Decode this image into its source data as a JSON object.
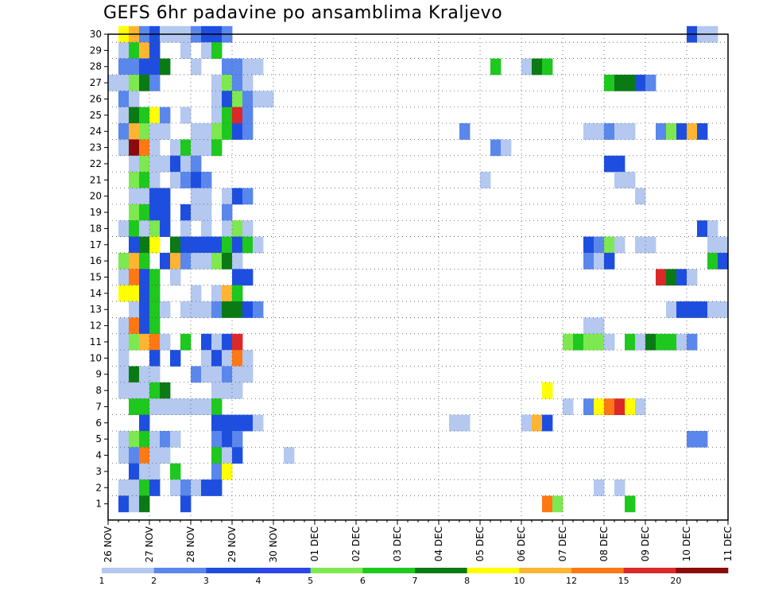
{
  "title": "GEFS 6hr padavine po ansamblima Kraljevo",
  "chart_data": {
    "type": "heatmap",
    "title": "GEFS 6hr padavine po ansamblima Kraljevo",
    "x_tick_labels": [
      "26 NOV",
      "27 NOV",
      "28 NOV",
      "29 NOV",
      "30 NOV",
      "01 DEC",
      "02 DEC",
      "03 DEC",
      "04 DEC",
      "05 DEC",
      "06 DEC",
      "07 DEC",
      "08 DEC",
      "09 DEC",
      "10 DEC",
      "11 DEC"
    ],
    "y_tick_labels": [
      "1",
      "2",
      "3",
      "4",
      "5",
      "6",
      "7",
      "8",
      "9",
      "10",
      "11",
      "12",
      "13",
      "14",
      "15",
      "16",
      "17",
      "18",
      "19",
      "20",
      "21",
      "22",
      "23",
      "24",
      "25",
      "26",
      "27",
      "28",
      "29",
      "30"
    ],
    "x_range": [
      0,
      60
    ],
    "y_range": [
      0,
      30
    ],
    "grid": true,
    "legend_position": "bottom",
    "legend": {
      "labels": [
        "1",
        "2",
        "3",
        "4",
        "5",
        "6",
        "7",
        "8",
        "10",
        "12",
        "15",
        "20"
      ],
      "colors": [
        "#b4c8f0",
        "#5a87ec",
        "#1e4ee0",
        "#2d45e8",
        "#7ee850",
        "#1ec81e",
        "#0a7a14",
        "#ffff00",
        "#ffb432",
        "#ff7814",
        "#dc2828",
        "#8b0a0a"
      ]
    },
    "cells_note": "each cell = [member (row 0-30), 6h step from 26 NOV 00Z, level index 0-11]",
    "cells": [
      [
        30,
        1,
        7
      ],
      [
        30,
        2,
        8
      ],
      [
        30,
        3,
        1
      ],
      [
        30,
        4,
        2
      ],
      [
        30,
        5,
        0
      ],
      [
        30,
        6,
        0
      ],
      [
        30,
        7,
        0
      ],
      [
        30,
        8,
        1
      ],
      [
        30,
        9,
        2
      ],
      [
        30,
        10,
        2
      ],
      [
        30,
        11,
        1
      ],
      [
        30,
        56,
        2
      ],
      [
        30,
        57,
        0
      ],
      [
        30,
        58,
        0
      ],
      [
        29,
        1,
        0
      ],
      [
        29,
        2,
        5
      ],
      [
        29,
        3,
        8
      ],
      [
        29,
        4,
        2
      ],
      [
        29,
        7,
        0
      ],
      [
        29,
        9,
        0
      ],
      [
        29,
        10,
        5
      ],
      [
        28,
        1,
        1
      ],
      [
        28,
        2,
        1
      ],
      [
        28,
        3,
        2
      ],
      [
        28,
        4,
        2
      ],
      [
        28,
        5,
        6
      ],
      [
        28,
        8,
        0
      ],
      [
        28,
        11,
        1
      ],
      [
        28,
        12,
        1
      ],
      [
        28,
        13,
        0
      ],
      [
        28,
        14,
        0
      ],
      [
        28,
        37,
        5
      ],
      [
        28,
        40,
        0
      ],
      [
        28,
        41,
        6
      ],
      [
        28,
        42,
        5
      ],
      [
        27,
        0,
        0
      ],
      [
        27,
        1,
        0
      ],
      [
        27,
        2,
        4
      ],
      [
        27,
        3,
        6
      ],
      [
        27,
        4,
        1
      ],
      [
        27,
        10,
        0
      ],
      [
        27,
        11,
        4
      ],
      [
        27,
        12,
        1
      ],
      [
        27,
        13,
        0
      ],
      [
        27,
        48,
        5
      ],
      [
        27,
        49,
        6
      ],
      [
        27,
        50,
        6
      ],
      [
        27,
        51,
        2
      ],
      [
        27,
        52,
        1
      ],
      [
        26,
        1,
        1
      ],
      [
        26,
        2,
        0
      ],
      [
        26,
        10,
        0
      ],
      [
        26,
        11,
        2
      ],
      [
        26,
        12,
        4
      ],
      [
        26,
        13,
        1
      ],
      [
        26,
        14,
        0
      ],
      [
        26,
        15,
        0
      ],
      [
        25,
        1,
        0
      ],
      [
        25,
        2,
        6
      ],
      [
        25,
        3,
        5
      ],
      [
        25,
        4,
        7
      ],
      [
        25,
        5,
        1
      ],
      [
        25,
        7,
        0
      ],
      [
        25,
        10,
        0
      ],
      [
        25,
        11,
        5
      ],
      [
        25,
        12,
        10
      ],
      [
        25,
        13,
        1
      ],
      [
        24,
        1,
        1
      ],
      [
        24,
        2,
        8
      ],
      [
        24,
        3,
        4
      ],
      [
        24,
        4,
        0
      ],
      [
        24,
        5,
        0
      ],
      [
        24,
        8,
        0
      ],
      [
        24,
        9,
        0
      ],
      [
        24,
        10,
        4
      ],
      [
        24,
        11,
        5
      ],
      [
        24,
        12,
        2
      ],
      [
        24,
        13,
        1
      ],
      [
        24,
        34,
        1
      ],
      [
        24,
        46,
        0
      ],
      [
        24,
        47,
        0
      ],
      [
        24,
        48,
        1
      ],
      [
        24,
        49,
        0
      ],
      [
        24,
        50,
        0
      ],
      [
        24,
        53,
        1
      ],
      [
        24,
        54,
        4
      ],
      [
        24,
        55,
        2
      ],
      [
        24,
        56,
        8
      ],
      [
        24,
        57,
        2
      ],
      [
        23,
        1,
        0
      ],
      [
        23,
        2,
        11
      ],
      [
        23,
        3,
        9
      ],
      [
        23,
        4,
        0
      ],
      [
        23,
        6,
        0
      ],
      [
        23,
        7,
        5
      ],
      [
        23,
        8,
        0
      ],
      [
        23,
        9,
        0
      ],
      [
        23,
        10,
        5
      ],
      [
        23,
        37,
        1
      ],
      [
        23,
        38,
        0
      ],
      [
        22,
        2,
        0
      ],
      [
        22,
        3,
        4
      ],
      [
        22,
        4,
        0
      ],
      [
        22,
        5,
        0
      ],
      [
        22,
        6,
        2
      ],
      [
        22,
        7,
        0
      ],
      [
        22,
        8,
        1
      ],
      [
        22,
        48,
        2
      ],
      [
        22,
        49,
        2
      ],
      [
        21,
        2,
        4
      ],
      [
        21,
        3,
        5
      ],
      [
        21,
        4,
        0
      ],
      [
        21,
        6,
        0
      ],
      [
        21,
        7,
        1
      ],
      [
        21,
        8,
        2
      ],
      [
        21,
        9,
        1
      ],
      [
        21,
        36,
        0
      ],
      [
        21,
        49,
        0
      ],
      [
        21,
        50,
        0
      ],
      [
        20,
        2,
        0
      ],
      [
        20,
        3,
        0
      ],
      [
        20,
        4,
        2
      ],
      [
        20,
        5,
        2
      ],
      [
        20,
        8,
        0
      ],
      [
        20,
        9,
        0
      ],
      [
        20,
        11,
        0
      ],
      [
        20,
        12,
        2
      ],
      [
        20,
        13,
        1
      ],
      [
        20,
        51,
        0
      ],
      [
        19,
        2,
        4
      ],
      [
        19,
        3,
        5
      ],
      [
        19,
        4,
        2
      ],
      [
        19,
        5,
        2
      ],
      [
        19,
        7,
        2
      ],
      [
        19,
        8,
        0
      ],
      [
        19,
        9,
        0
      ],
      [
        19,
        11,
        1
      ],
      [
        18,
        1,
        0
      ],
      [
        18,
        2,
        5
      ],
      [
        18,
        3,
        0
      ],
      [
        18,
        4,
        4
      ],
      [
        18,
        5,
        2
      ],
      [
        18,
        7,
        0
      ],
      [
        18,
        9,
        0
      ],
      [
        18,
        11,
        0
      ],
      [
        18,
        12,
        4
      ],
      [
        18,
        13,
        0
      ],
      [
        18,
        57,
        2
      ],
      [
        18,
        58,
        0
      ],
      [
        17,
        2,
        2
      ],
      [
        17,
        3,
        6
      ],
      [
        17,
        4,
        7
      ],
      [
        17,
        6,
        6
      ],
      [
        17,
        7,
        2
      ],
      [
        17,
        8,
        2
      ],
      [
        17,
        9,
        2
      ],
      [
        17,
        10,
        2
      ],
      [
        17,
        11,
        5
      ],
      [
        17,
        12,
        2
      ],
      [
        17,
        13,
        5
      ],
      [
        17,
        14,
        0
      ],
      [
        17,
        46,
        2
      ],
      [
        17,
        47,
        1
      ],
      [
        17,
        48,
        4
      ],
      [
        17,
        49,
        0
      ],
      [
        17,
        51,
        0
      ],
      [
        17,
        52,
        0
      ],
      [
        17,
        58,
        0
      ],
      [
        17,
        59,
        0
      ],
      [
        16,
        1,
        4
      ],
      [
        16,
        2,
        8
      ],
      [
        16,
        3,
        5
      ],
      [
        16,
        5,
        2
      ],
      [
        16,
        6,
        8
      ],
      [
        16,
        7,
        1
      ],
      [
        16,
        8,
        0
      ],
      [
        16,
        9,
        0
      ],
      [
        16,
        10,
        4
      ],
      [
        16,
        11,
        6
      ],
      [
        16,
        12,
        0
      ],
      [
        16,
        46,
        1
      ],
      [
        16,
        47,
        0
      ],
      [
        16,
        48,
        2
      ],
      [
        16,
        58,
        5
      ],
      [
        16,
        59,
        2
      ],
      [
        15,
        1,
        0
      ],
      [
        15,
        2,
        9
      ],
      [
        15,
        3,
        2
      ],
      [
        15,
        4,
        5
      ],
      [
        15,
        6,
        0
      ],
      [
        15,
        12,
        2
      ],
      [
        15,
        13,
        2
      ],
      [
        15,
        53,
        10
      ],
      [
        15,
        54,
        6
      ],
      [
        15,
        55,
        2
      ],
      [
        15,
        56,
        0
      ],
      [
        14,
        1,
        7
      ],
      [
        14,
        2,
        7
      ],
      [
        14,
        3,
        2
      ],
      [
        14,
        4,
        5
      ],
      [
        14,
        8,
        0
      ],
      [
        14,
        10,
        0
      ],
      [
        14,
        11,
        8
      ],
      [
        14,
        12,
        5
      ],
      [
        13,
        2,
        0
      ],
      [
        13,
        3,
        2
      ],
      [
        13,
        4,
        5
      ],
      [
        13,
        5,
        0
      ],
      [
        13,
        7,
        0
      ],
      [
        13,
        8,
        0
      ],
      [
        13,
        9,
        0
      ],
      [
        13,
        10,
        1
      ],
      [
        13,
        11,
        6
      ],
      [
        13,
        12,
        6
      ],
      [
        13,
        13,
        2
      ],
      [
        13,
        14,
        1
      ],
      [
        13,
        54,
        0
      ],
      [
        13,
        55,
        2
      ],
      [
        13,
        56,
        2
      ],
      [
        13,
        57,
        2
      ],
      [
        13,
        58,
        0
      ],
      [
        13,
        59,
        0
      ],
      [
        12,
        1,
        0
      ],
      [
        12,
        2,
        9
      ],
      [
        12,
        3,
        2
      ],
      [
        12,
        4,
        5
      ],
      [
        12,
        46,
        0
      ],
      [
        12,
        47,
        0
      ],
      [
        11,
        1,
        0
      ],
      [
        11,
        2,
        4
      ],
      [
        11,
        3,
        8
      ],
      [
        11,
        4,
        9
      ],
      [
        11,
        5,
        0
      ],
      [
        11,
        7,
        5
      ],
      [
        11,
        9,
        2
      ],
      [
        11,
        10,
        0
      ],
      [
        11,
        11,
        2
      ],
      [
        11,
        12,
        10
      ],
      [
        11,
        44,
        4
      ],
      [
        11,
        45,
        5
      ],
      [
        11,
        46,
        4
      ],
      [
        11,
        47,
        4
      ],
      [
        11,
        48,
        0
      ],
      [
        11,
        50,
        5
      ],
      [
        11,
        51,
        0
      ],
      [
        11,
        52,
        6
      ],
      [
        11,
        53,
        5
      ],
      [
        11,
        54,
        5
      ],
      [
        11,
        55,
        0
      ],
      [
        11,
        56,
        1
      ],
      [
        10,
        1,
        0
      ],
      [
        10,
        4,
        2
      ],
      [
        10,
        6,
        2
      ],
      [
        10,
        9,
        0
      ],
      [
        10,
        10,
        2
      ],
      [
        10,
        11,
        0
      ],
      [
        10,
        12,
        9
      ],
      [
        10,
        13,
        0
      ],
      [
        9,
        1,
        0
      ],
      [
        9,
        2,
        6
      ],
      [
        9,
        3,
        0
      ],
      [
        9,
        4,
        0
      ],
      [
        9,
        8,
        1
      ],
      [
        9,
        9,
        0
      ],
      [
        9,
        10,
        0
      ],
      [
        9,
        11,
        1
      ],
      [
        9,
        12,
        0
      ],
      [
        9,
        13,
        0
      ],
      [
        8,
        1,
        0
      ],
      [
        8,
        2,
        0
      ],
      [
        8,
        3,
        0
      ],
      [
        8,
        4,
        5
      ],
      [
        8,
        5,
        6
      ],
      [
        8,
        10,
        0
      ],
      [
        8,
        11,
        0
      ],
      [
        8,
        12,
        0
      ],
      [
        8,
        42,
        7
      ],
      [
        7,
        2,
        5
      ],
      [
        7,
        3,
        5
      ],
      [
        7,
        4,
        0
      ],
      [
        7,
        5,
        0
      ],
      [
        7,
        6,
        0
      ],
      [
        7,
        7,
        0
      ],
      [
        7,
        8,
        0
      ],
      [
        7,
        9,
        0
      ],
      [
        7,
        10,
        5
      ],
      [
        7,
        44,
        0
      ],
      [
        7,
        46,
        1
      ],
      [
        7,
        47,
        7
      ],
      [
        7,
        48,
        9
      ],
      [
        7,
        49,
        10
      ],
      [
        7,
        50,
        7
      ],
      [
        7,
        51,
        0
      ],
      [
        6,
        3,
        2
      ],
      [
        6,
        10,
        2
      ],
      [
        6,
        11,
        2
      ],
      [
        6,
        12,
        2
      ],
      [
        6,
        13,
        2
      ],
      [
        6,
        14,
        0
      ],
      [
        6,
        33,
        0
      ],
      [
        6,
        34,
        0
      ],
      [
        6,
        40,
        0
      ],
      [
        6,
        41,
        8
      ],
      [
        6,
        42,
        2
      ],
      [
        5,
        1,
        0
      ],
      [
        5,
        2,
        4
      ],
      [
        5,
        3,
        5
      ],
      [
        5,
        4,
        0
      ],
      [
        5,
        5,
        1
      ],
      [
        5,
        6,
        0
      ],
      [
        5,
        10,
        1
      ],
      [
        5,
        11,
        2
      ],
      [
        5,
        12,
        1
      ],
      [
        5,
        56,
        1
      ],
      [
        5,
        57,
        1
      ],
      [
        4,
        1,
        0
      ],
      [
        4,
        2,
        1
      ],
      [
        4,
        3,
        9
      ],
      [
        4,
        4,
        0
      ],
      [
        4,
        5,
        0
      ],
      [
        4,
        10,
        5
      ],
      [
        4,
        11,
        0
      ],
      [
        4,
        12,
        2
      ],
      [
        4,
        17,
        0
      ],
      [
        3,
        2,
        2
      ],
      [
        3,
        3,
        0
      ],
      [
        3,
        4,
        0
      ],
      [
        3,
        6,
        5
      ],
      [
        3,
        10,
        1
      ],
      [
        3,
        11,
        7
      ],
      [
        2,
        1,
        0
      ],
      [
        2,
        2,
        0
      ],
      [
        2,
        3,
        5
      ],
      [
        2,
        4,
        2
      ],
      [
        2,
        6,
        0
      ],
      [
        2,
        7,
        1
      ],
      [
        2,
        8,
        0
      ],
      [
        2,
        9,
        2
      ],
      [
        2,
        10,
        2
      ],
      [
        2,
        47,
        0
      ],
      [
        2,
        49,
        0
      ],
      [
        1,
        1,
        2
      ],
      [
        1,
        2,
        0
      ],
      [
        1,
        3,
        6
      ],
      [
        1,
        7,
        2
      ],
      [
        1,
        42,
        9
      ],
      [
        1,
        43,
        4
      ],
      [
        1,
        50,
        5
      ]
    ]
  }
}
